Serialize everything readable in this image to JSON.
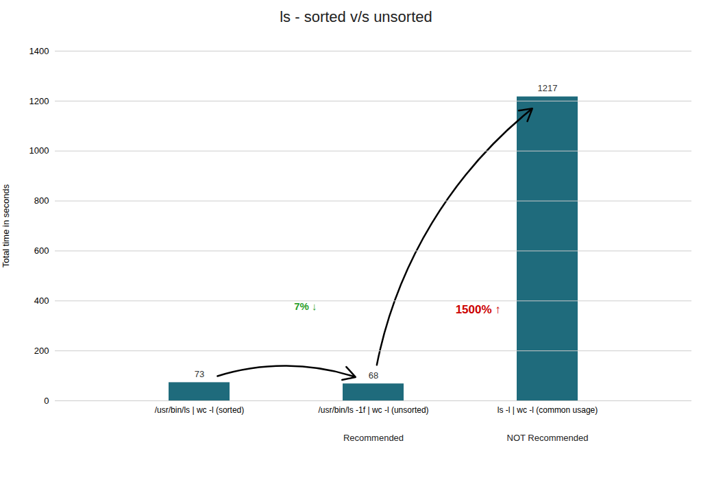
{
  "chart_data": {
    "type": "bar",
    "title": "ls - sorted v/s unsorted",
    "categories": [
      "/usr/bin/ls | wc -l (sorted)",
      "/usr/bin/ls -1f | wc -l (unsorted)",
      "ls -l | wc -l (common usage)"
    ],
    "values": [
      73,
      68,
      1217
    ],
    "color": "#1f6b7c",
    "ylabel": "Total time in seconds",
    "ylim": [
      0,
      1400
    ],
    "yticks": [
      0,
      200,
      400,
      600,
      800,
      1000,
      1200,
      1400
    ],
    "grid": true,
    "data_labels": true,
    "annotations": [
      {
        "text": "1500% ↑",
        "color": "#cc0000"
      },
      {
        "text": "7% ↓",
        "color": "#2ca02c"
      },
      {
        "text": "Recommended",
        "color": "#2ca02c"
      },
      {
        "text": "NOT Recommended",
        "color": "#d62728"
      }
    ]
  }
}
